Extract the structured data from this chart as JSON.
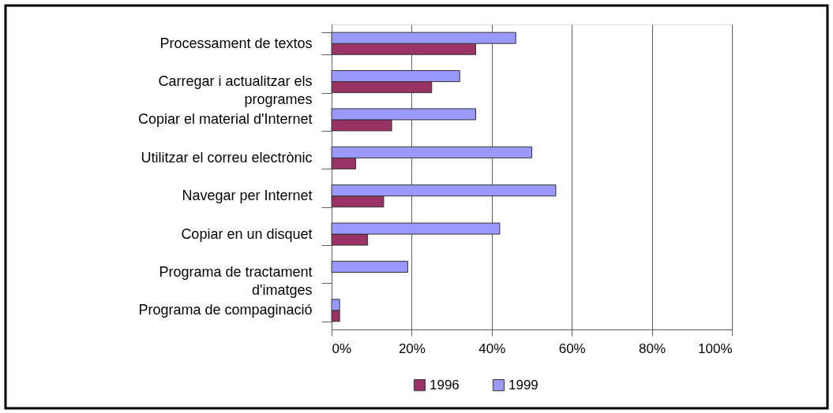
{
  "chart_data": {
    "type": "bar",
    "orientation": "horizontal",
    "categories": [
      "Processament de textos",
      "Carregar i actualitzar els programes",
      "Copiar el material d'Internet",
      "Utilitzar el correu electrònic",
      "Navegar per Internet",
      "Copiar en un disquet",
      "Programa de tractament d'imatges",
      "Programa de compaginació"
    ],
    "series": [
      {
        "name": "1996",
        "color": "#993366",
        "values": [
          36,
          25,
          15,
          6,
          13,
          9,
          null,
          2
        ]
      },
      {
        "name": "1999",
        "color": "#9999ff",
        "values": [
          46,
          32,
          36,
          50,
          56,
          42,
          19,
          2
        ]
      }
    ],
    "xlim": [
      0,
      100
    ],
    "xticks": [
      {
        "value": 0,
        "label": "0%"
      },
      {
        "value": 20,
        "label": "20%"
      },
      {
        "value": 40,
        "label": "40%"
      },
      {
        "value": 60,
        "label": "60%"
      },
      {
        "value": 80,
        "label": "80%"
      },
      {
        "value": 100,
        "label": "100%"
      }
    ],
    "grid": "x",
    "legend": "bottom"
  }
}
